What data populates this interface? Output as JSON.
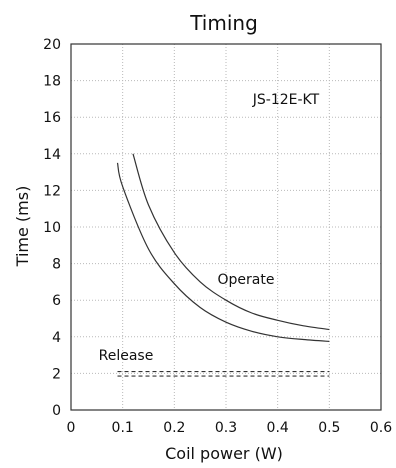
{
  "chart_data": {
    "type": "line",
    "title": "Timing",
    "xlabel": "Coil power (W)",
    "ylabel": "Time (ms)",
    "xlim": [
      0,
      0.6
    ],
    "ylim": [
      0,
      20
    ],
    "x_ticks": [
      "0",
      "0.1",
      "0.2",
      "0.3",
      "0.4",
      "0.5",
      "0.6"
    ],
    "y_ticks": [
      "0",
      "2",
      "4",
      "6",
      "8",
      "10",
      "12",
      "14",
      "16",
      "18",
      "20"
    ],
    "grid": true,
    "annotations": {
      "model": "JS-12E-KT",
      "operate": "Operate",
      "release": "Release"
    },
    "series": [
      {
        "name": "Operate",
        "style": "solid",
        "points": [
          [
            0.12,
            14.0
          ],
          [
            0.15,
            11.2
          ],
          [
            0.2,
            8.6
          ],
          [
            0.25,
            7.0
          ],
          [
            0.3,
            6.0
          ],
          [
            0.35,
            5.3
          ],
          [
            0.4,
            4.9
          ],
          [
            0.45,
            4.6
          ],
          [
            0.5,
            4.4
          ]
        ]
      },
      {
        "style": "solid",
        "points": [
          [
            0.09,
            13.5
          ],
          [
            0.1,
            12.2
          ],
          [
            0.15,
            8.8
          ],
          [
            0.2,
            6.9
          ],
          [
            0.25,
            5.6
          ],
          [
            0.3,
            4.8
          ],
          [
            0.35,
            4.3
          ],
          [
            0.4,
            4.0
          ],
          [
            0.45,
            3.85
          ],
          [
            0.5,
            3.75
          ]
        ]
      },
      {
        "name": "Release",
        "style": "dashed",
        "points": [
          [
            0.09,
            2.1
          ],
          [
            0.5,
            2.1
          ]
        ]
      },
      {
        "style": "dashed",
        "points": [
          [
            0.09,
            1.85
          ],
          [
            0.5,
            1.85
          ]
        ]
      }
    ]
  }
}
